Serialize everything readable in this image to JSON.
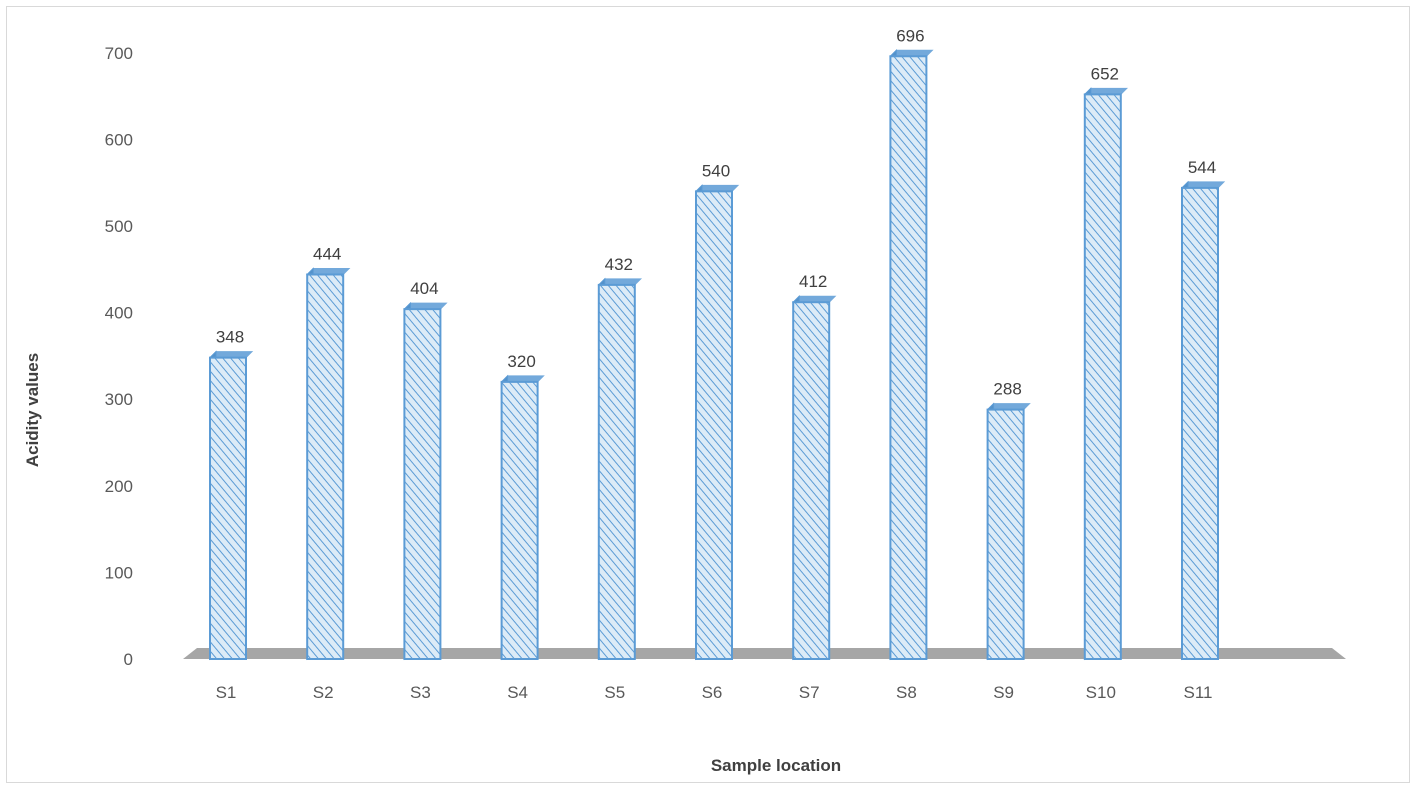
{
  "chart_data": {
    "type": "bar",
    "title": "",
    "xlabel": "Sample location",
    "ylabel": "Acidity values",
    "categories": [
      "S1",
      "S2",
      "S3",
      "S4",
      "S5",
      "S6",
      "S7",
      "S8",
      "S9",
      "S10",
      "S11"
    ],
    "values": [
      348,
      444,
      404,
      320,
      432,
      540,
      412,
      696,
      288,
      652,
      544
    ],
    "ylim": [
      0,
      700
    ],
    "yticks": [
      "0",
      "100",
      "200",
      "300",
      "400",
      "500",
      "600",
      "700"
    ],
    "grid": false,
    "legend": "none",
    "data_labels": true,
    "style": "3d-column",
    "colors": {
      "bar_fill": "#dcebf7",
      "bar_hatch": "#5b9bd5",
      "bar_edge": "#5b9bd5",
      "bar_side": "#2e5f8f",
      "floor": "#a6a6a6"
    }
  }
}
